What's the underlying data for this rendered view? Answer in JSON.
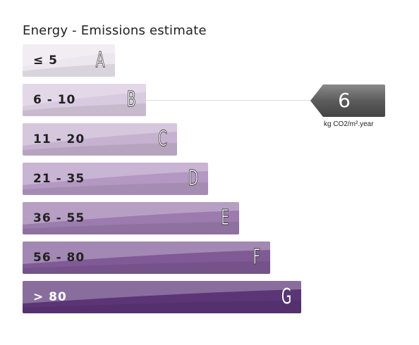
{
  "title": "Energy - Emissions estimate",
  "chart_data": {
    "type": "energy-rating",
    "categories": [
      {
        "range": "≤ 5",
        "letter": "A",
        "color": "#ece6ee",
        "text_color": "#222222"
      },
      {
        "range": "6 - 10",
        "letter": "B",
        "color": "#d8cadf",
        "text_color": "#222222"
      },
      {
        "range": "11 - 20",
        "letter": "C",
        "color": "#c6b2d0",
        "text_color": "#222222"
      },
      {
        "range": "21 - 35",
        "letter": "D",
        "color": "#b398c2",
        "text_color": "#222222"
      },
      {
        "range": "36 - 55",
        "letter": "E",
        "color": "#9c7bae",
        "text_color": "#222222"
      },
      {
        "range": "56 - 80",
        "letter": "F",
        "color": "#7f5a96",
        "text_color": "#222222"
      },
      {
        "range": "> 80",
        "letter": "G",
        "color": "#5c3577",
        "text_color": "#ffffff"
      }
    ],
    "value": 6,
    "value_rating": "B",
    "unit": "kg CO2/m².year",
    "marker_color": "#5a5a5a"
  }
}
